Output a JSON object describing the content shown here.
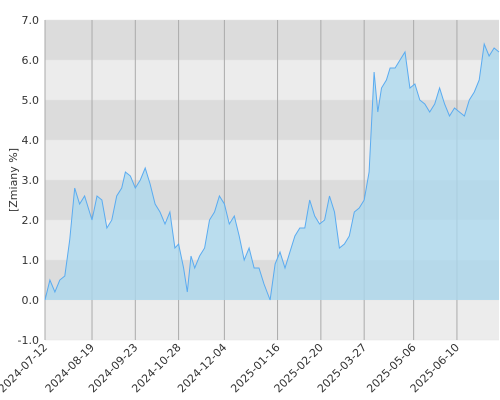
{
  "chart_data": {
    "type": "area",
    "y_label": "[Zmiany %]",
    "x": [
      "2024-07-12",
      "2024-07-16",
      "2024-07-20",
      "2024-07-24",
      "2024-07-28",
      "2024-08-01",
      "2024-08-05",
      "2024-08-09",
      "2024-08-13",
      "2024-08-19",
      "2024-08-23",
      "2024-08-27",
      "2024-08-31",
      "2024-09-04",
      "2024-09-08",
      "2024-09-12",
      "2024-09-15",
      "2024-09-19",
      "2024-09-23",
      "2024-09-27",
      "2024-10-01",
      "2024-10-05",
      "2024-10-09",
      "2024-10-13",
      "2024-10-17",
      "2024-10-21",
      "2024-10-25",
      "2024-10-28",
      "2024-11-01",
      "2024-11-04",
      "2024-11-07",
      "2024-11-10",
      "2024-11-14",
      "2024-11-18",
      "2024-11-22",
      "2024-11-26",
      "2024-11-30",
      "2024-12-04",
      "2024-12-08",
      "2024-12-12",
      "2024-12-16",
      "2024-12-20",
      "2024-12-24",
      "2024-12-28",
      "2025-01-01",
      "2025-01-05",
      "2025-01-10",
      "2025-01-14",
      "2025-01-18",
      "2025-01-22",
      "2025-01-26",
      "2025-01-30",
      "2025-02-03",
      "2025-02-07",
      "2025-02-11",
      "2025-02-15",
      "2025-02-19",
      "2025-02-23",
      "2025-02-27",
      "2025-03-03",
      "2025-03-07",
      "2025-03-11",
      "2025-03-15",
      "2025-03-19",
      "2025-03-23",
      "2025-03-27",
      "2025-03-31",
      "2025-04-04",
      "2025-04-07",
      "2025-04-10",
      "2025-04-14",
      "2025-04-17",
      "2025-04-21",
      "2025-04-25",
      "2025-04-29",
      "2025-05-03",
      "2025-05-07",
      "2025-05-11",
      "2025-05-15",
      "2025-05-19",
      "2025-05-23",
      "2025-05-27",
      "2025-05-31",
      "2025-06-04",
      "2025-06-08",
      "2025-06-12",
      "2025-06-16",
      "2025-06-20",
      "2025-06-24",
      "2025-06-28",
      "2025-07-02",
      "2025-07-06",
      "2025-07-10",
      "2025-07-14"
    ],
    "values": [
      0.0,
      0.5,
      0.2,
      0.5,
      0.6,
      1.5,
      2.8,
      2.4,
      2.6,
      2.0,
      2.6,
      2.5,
      1.8,
      2.0,
      2.6,
      2.8,
      3.2,
      3.1,
      2.8,
      3.0,
      3.3,
      2.9,
      2.4,
      2.2,
      1.9,
      2.2,
      1.3,
      1.4,
      0.8,
      0.2,
      1.1,
      0.8,
      1.1,
      1.3,
      2.0,
      2.2,
      2.6,
      2.4,
      1.9,
      2.1,
      1.6,
      1.0,
      1.3,
      0.8,
      0.8,
      0.4,
      0.0,
      0.9,
      1.2,
      0.8,
      1.2,
      1.6,
      1.8,
      1.8,
      2.5,
      2.1,
      1.9,
      2.0,
      2.6,
      2.2,
      1.3,
      1.4,
      1.6,
      2.2,
      2.3,
      2.5,
      3.2,
      5.7,
      4.7,
      5.3,
      5.5,
      5.8,
      5.8,
      6.0,
      6.2,
      5.3,
      5.4,
      5.0,
      4.9,
      4.7,
      4.9,
      5.3,
      4.9,
      4.6,
      4.8,
      4.7,
      4.6,
      5.0,
      5.2,
      5.5,
      6.4,
      6.1,
      6.3,
      6.2
    ],
    "color": "#5aabf0",
    "fill": "#a9d8ef",
    "xlim": [
      "2024-07-12",
      "2025-07-14"
    ],
    "xticks": [
      "2024-07-12",
      "2024-08-19",
      "2024-09-23",
      "2024-10-28",
      "2024-12-04",
      "2025-01-16",
      "2025-02-20",
      "2025-03-27",
      "2025-05-06",
      "2025-06-10"
    ],
    "ylim": [
      -1,
      7
    ],
    "yticks": [
      {
        "value": -1,
        "label": "-1.0"
      },
      {
        "value": 0,
        "label": "0.0"
      },
      {
        "value": 1,
        "label": "1.0"
      },
      {
        "value": 2,
        "label": "2.0"
      },
      {
        "value": 3,
        "label": "3.0"
      },
      {
        "value": 4,
        "label": "4.0"
      },
      {
        "value": 5,
        "label": "5.0"
      },
      {
        "value": 6,
        "label": "6.0"
      },
      {
        "value": 7,
        "label": "7.0"
      }
    ],
    "grid": true
  }
}
